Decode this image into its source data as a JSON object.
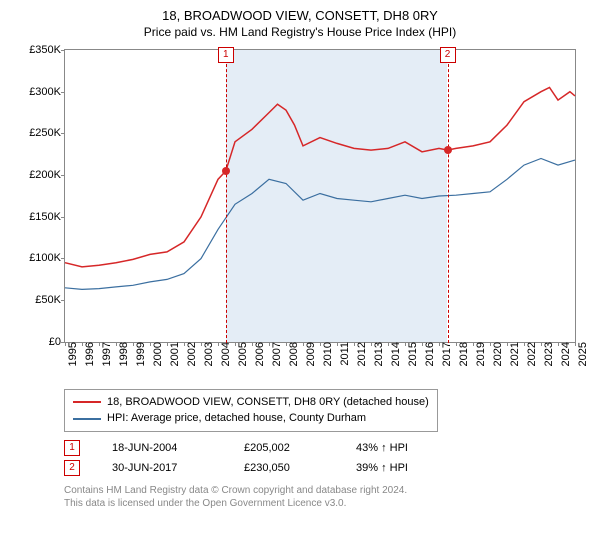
{
  "title": "18, BROADWOOD VIEW, CONSETT, DH8 0RY",
  "subtitle": "Price paid vs. HM Land Registry's House Price Index (HPI)",
  "chart": {
    "type": "line",
    "background_color": "#ffffff",
    "shaded_color": "#e4edf6",
    "border_color": "#888888",
    "y": {
      "min": 0,
      "max": 350000,
      "step": 50000,
      "labels": [
        "£0",
        "£50K",
        "£100K",
        "£150K",
        "£200K",
        "£250K",
        "£300K",
        "£350K"
      ],
      "fontsize": 11
    },
    "x": {
      "min": 1995,
      "max": 2025,
      "step": 1,
      "labels": [
        "1995",
        "1996",
        "1997",
        "1998",
        "1999",
        "2000",
        "2001",
        "2002",
        "2003",
        "2004",
        "2005",
        "2006",
        "2007",
        "2008",
        "2009",
        "2010",
        "2011",
        "2012",
        "2013",
        "2014",
        "2015",
        "2016",
        "2017",
        "2018",
        "2019",
        "2020",
        "2021",
        "2022",
        "2023",
        "2024",
        "2025"
      ],
      "fontsize": 11
    },
    "shaded_range": {
      "start": 2004.46,
      "end": 2017.5
    },
    "series": [
      {
        "name": "price-paid",
        "label": "18, BROADWOOD VIEW, CONSETT, DH8 0RY (detached house)",
        "color": "#d62728",
        "line_width": 1.5,
        "points": [
          [
            1995,
            95000
          ],
          [
            1996,
            90000
          ],
          [
            1997,
            92000
          ],
          [
            1998,
            95000
          ],
          [
            1999,
            99000
          ],
          [
            2000,
            105000
          ],
          [
            2001,
            108000
          ],
          [
            2002,
            120000
          ],
          [
            2003,
            150000
          ],
          [
            2004,
            195000
          ],
          [
            2004.46,
            205002
          ],
          [
            2005,
            240000
          ],
          [
            2006,
            255000
          ],
          [
            2007,
            275000
          ],
          [
            2007.5,
            285000
          ],
          [
            2008,
            278000
          ],
          [
            2008.5,
            260000
          ],
          [
            2009,
            235000
          ],
          [
            2010,
            245000
          ],
          [
            2011,
            238000
          ],
          [
            2012,
            232000
          ],
          [
            2013,
            230000
          ],
          [
            2014,
            232000
          ],
          [
            2015,
            240000
          ],
          [
            2016,
            228000
          ],
          [
            2017,
            232000
          ],
          [
            2017.5,
            230050
          ],
          [
            2018,
            232000
          ],
          [
            2019,
            235000
          ],
          [
            2020,
            240000
          ],
          [
            2021,
            260000
          ],
          [
            2022,
            288000
          ],
          [
            2023,
            300000
          ],
          [
            2023.5,
            305000
          ],
          [
            2024,
            290000
          ],
          [
            2024.7,
            300000
          ],
          [
            2025,
            295000
          ]
        ]
      },
      {
        "name": "hpi",
        "label": "HPI: Average price, detached house, County Durham",
        "color": "#3b6fa0",
        "line_width": 1.2,
        "points": [
          [
            1995,
            65000
          ],
          [
            1996,
            63000
          ],
          [
            1997,
            64000
          ],
          [
            1998,
            66000
          ],
          [
            1999,
            68000
          ],
          [
            2000,
            72000
          ],
          [
            2001,
            75000
          ],
          [
            2002,
            82000
          ],
          [
            2003,
            100000
          ],
          [
            2004,
            135000
          ],
          [
            2005,
            165000
          ],
          [
            2006,
            178000
          ],
          [
            2007,
            195000
          ],
          [
            2008,
            190000
          ],
          [
            2009,
            170000
          ],
          [
            2010,
            178000
          ],
          [
            2011,
            172000
          ],
          [
            2012,
            170000
          ],
          [
            2013,
            168000
          ],
          [
            2014,
            172000
          ],
          [
            2015,
            176000
          ],
          [
            2016,
            172000
          ],
          [
            2017,
            175000
          ],
          [
            2018,
            176000
          ],
          [
            2019,
            178000
          ],
          [
            2020,
            180000
          ],
          [
            2021,
            195000
          ],
          [
            2022,
            212000
          ],
          [
            2023,
            220000
          ],
          [
            2024,
            212000
          ],
          [
            2025,
            218000
          ]
        ]
      }
    ],
    "sale_markers": [
      {
        "num": "1",
        "x": 2004.46,
        "y": 205002
      },
      {
        "num": "2",
        "x": 2017.5,
        "y": 230050
      }
    ]
  },
  "legend": {
    "items": [
      {
        "color": "#d62728",
        "label": "18, BROADWOOD VIEW, CONSETT, DH8 0RY (detached house)"
      },
      {
        "color": "#3b6fa0",
        "label": "HPI: Average price, detached house, County Durham"
      }
    ]
  },
  "sales": [
    {
      "num": "1",
      "date": "18-JUN-2004",
      "price": "£205,002",
      "diff": "43% ↑ HPI"
    },
    {
      "num": "2",
      "date": "30-JUN-2017",
      "price": "£230,050",
      "diff": "39% ↑ HPI"
    }
  ],
  "footer": {
    "line1": "Contains HM Land Registry data © Crown copyright and database right 2024.",
    "line2": "This data is licensed under the Open Government Licence v3.0."
  }
}
